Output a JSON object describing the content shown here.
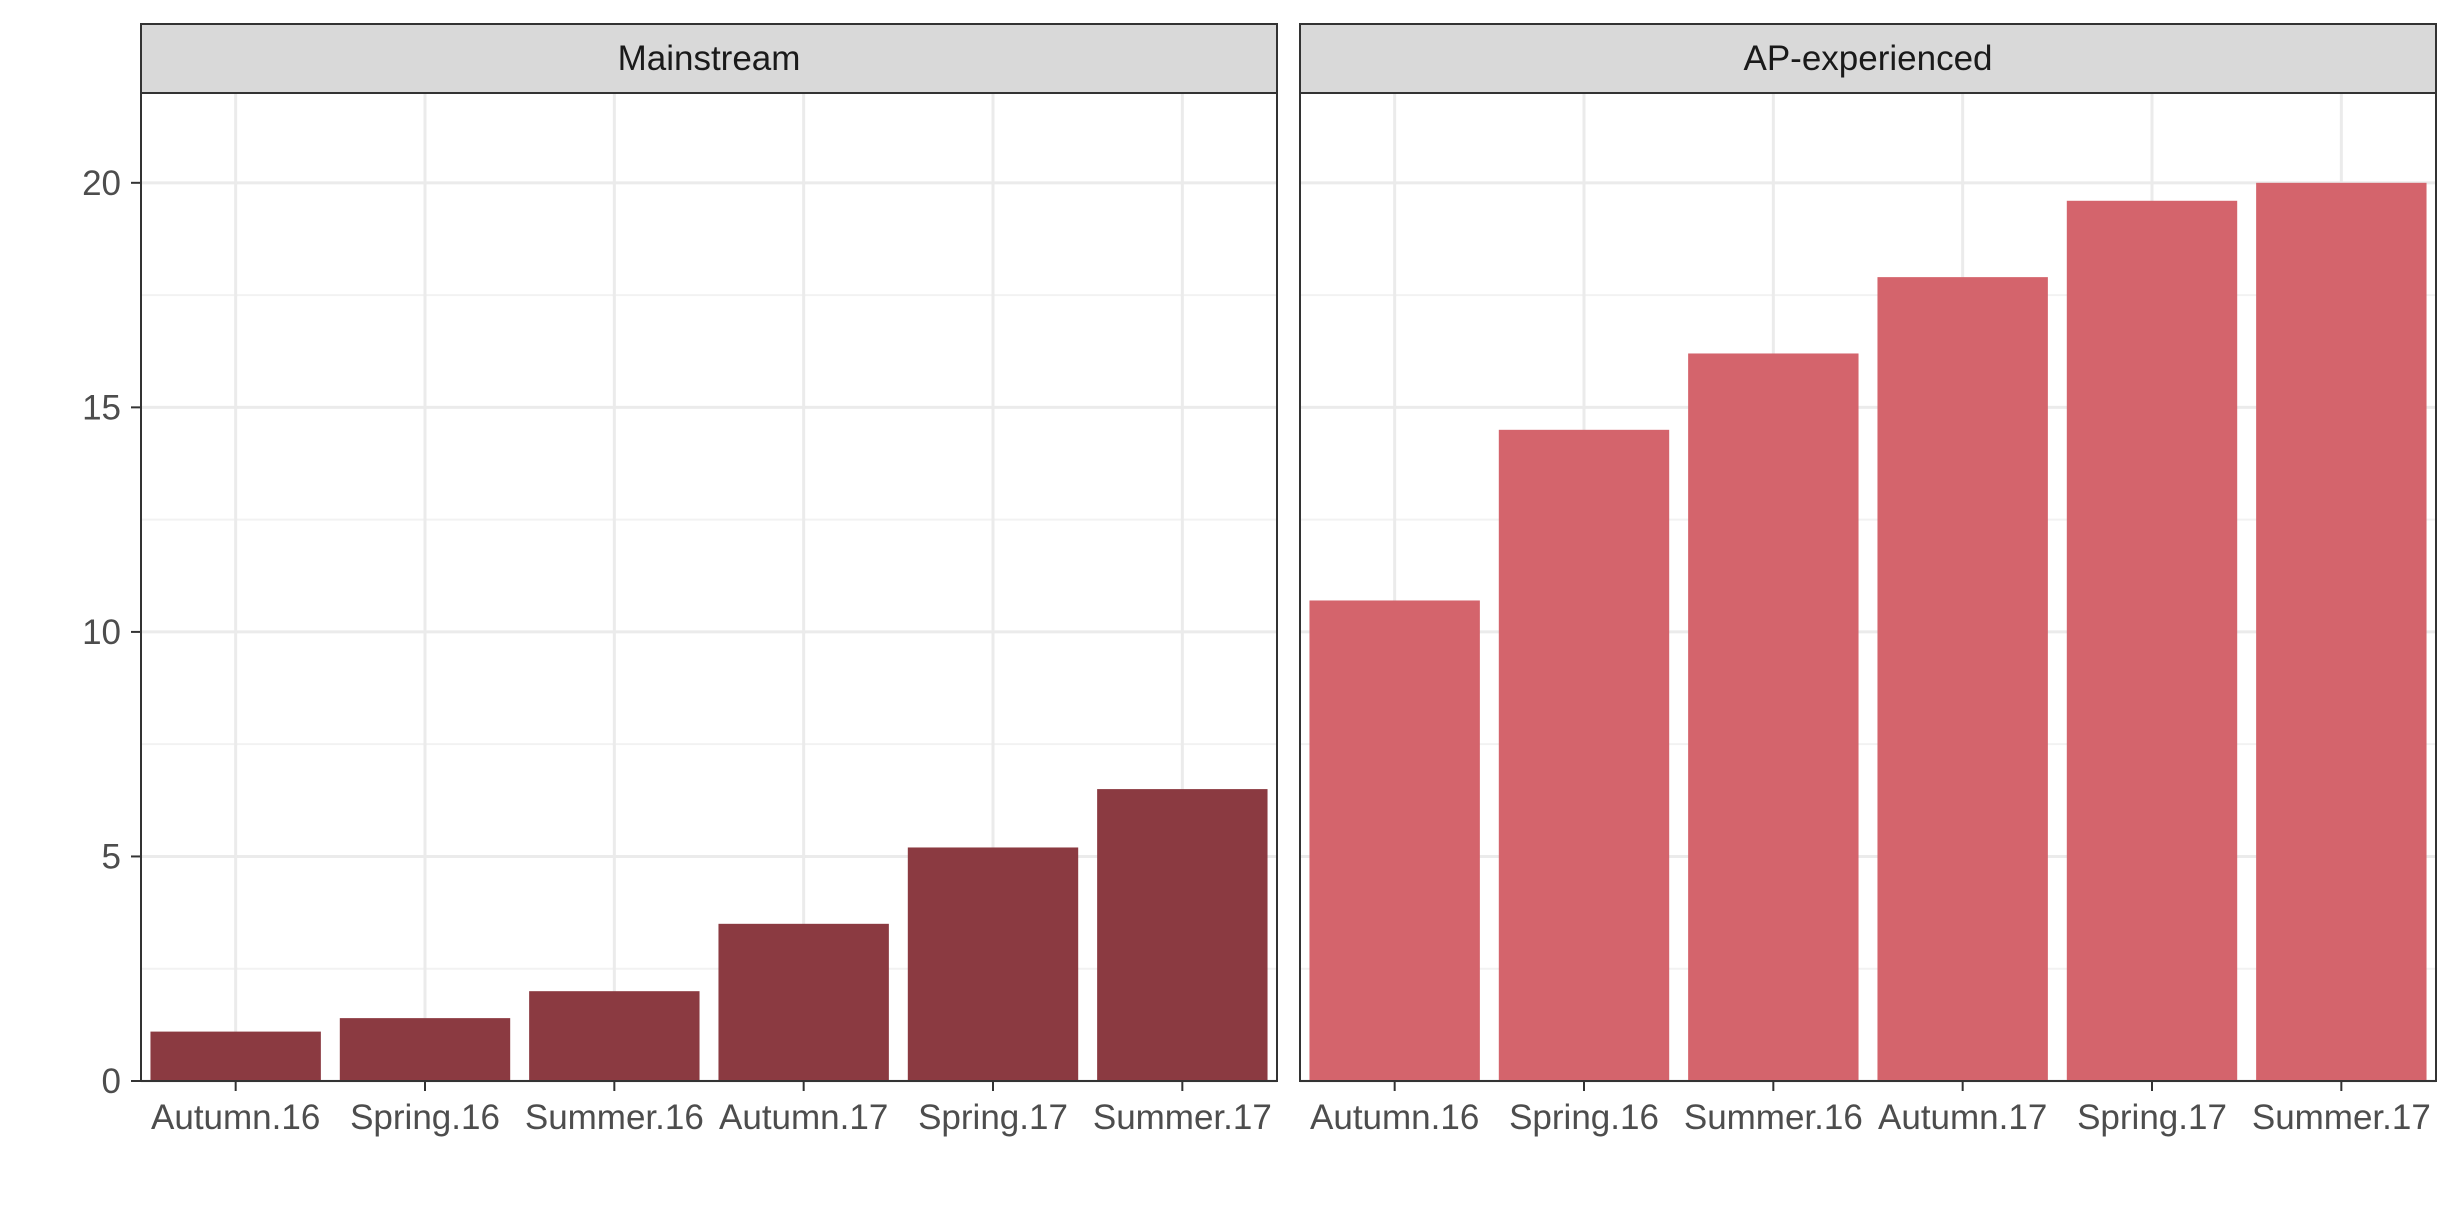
{
  "chart_data": {
    "type": "bar",
    "categories": [
      "Autumn.16",
      "Spring.16",
      "Summer.16",
      "Autumn.17",
      "Spring.17",
      "Summer.17"
    ],
    "yticks": [
      0,
      5,
      10,
      15,
      20
    ],
    "ylim": [
      0,
      22
    ],
    "grid": true,
    "xlabel": "",
    "ylabel": "",
    "panels": [
      {
        "title": "Mainstream",
        "color": "#8b3a41",
        "values": [
          1.1,
          1.4,
          2.0,
          3.5,
          5.2,
          6.5
        ]
      },
      {
        "title": "AP-experienced",
        "color": "#d4646c",
        "values": [
          10.7,
          14.5,
          16.2,
          17.9,
          19.6,
          20.0
        ]
      }
    ]
  }
}
